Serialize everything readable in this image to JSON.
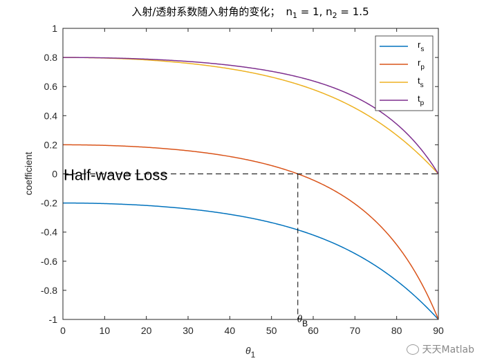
{
  "chart_data": {
    "type": "line",
    "title_prefix": "入射/透射系数随入射角的变化；",
    "title_n1": "n",
    "title_n1_sub": "1",
    "title_n1_val": " = 1, ",
    "title_n2": "n",
    "title_n2_sub": "2",
    "title_n2_val": " = 1.5",
    "n1": 1,
    "n2": 1.5,
    "xlabel": "θ",
    "xlabel_sub": "1",
    "ylabel": "coefficient",
    "xlim": [
      0,
      90
    ],
    "ylim": [
      -1,
      1
    ],
    "xticks": [
      "0",
      "10",
      "20",
      "30",
      "40",
      "50",
      "60",
      "70",
      "80",
      "90"
    ],
    "yticks": [
      "1",
      "0.8",
      "0.6",
      "0.4",
      "0.2",
      "0",
      "-0.2",
      "-0.4",
      "-0.6",
      "-0.8",
      "-1"
    ],
    "x": [
      0,
      10,
      20,
      30,
      40,
      50,
      60,
      70,
      80,
      90
    ],
    "series": [
      {
        "name": "r",
        "sub": "s",
        "color": "#0072BD",
        "values": [
          -0.2,
          -0.2041,
          -0.217,
          -0.2404,
          -0.2778,
          -0.3347,
          -0.4202,
          -0.5474,
          -0.7339,
          -1
        ]
      },
      {
        "name": "r",
        "sub": "p",
        "color": "#D95319",
        "values": [
          0.2,
          0.1959,
          0.1829,
          0.1589,
          0.1196,
          0.0573,
          -0.0425,
          -0.2061,
          -0.4866,
          -1
        ]
      },
      {
        "name": "t",
        "sub": "s",
        "color": "#EDB120",
        "values": [
          0.8,
          0.7959,
          0.783,
          0.7596,
          0.7222,
          0.6653,
          0.5798,
          0.4526,
          0.2661,
          0
        ]
      },
      {
        "name": "t",
        "sub": "p",
        "color": "#7E2F8E",
        "values": [
          0.8,
          0.7973,
          0.7886,
          0.7726,
          0.7464,
          0.7048,
          0.6384,
          0.5292,
          0.3422,
          0
        ]
      }
    ],
    "legend_position": "top-right",
    "annotations": {
      "half_wave_loss": "Half-wave Loss",
      "brewster_label": "θ",
      "brewster_sub": "B",
      "brewster_angle": 56.31
    }
  },
  "watermark": "天天Matlab"
}
